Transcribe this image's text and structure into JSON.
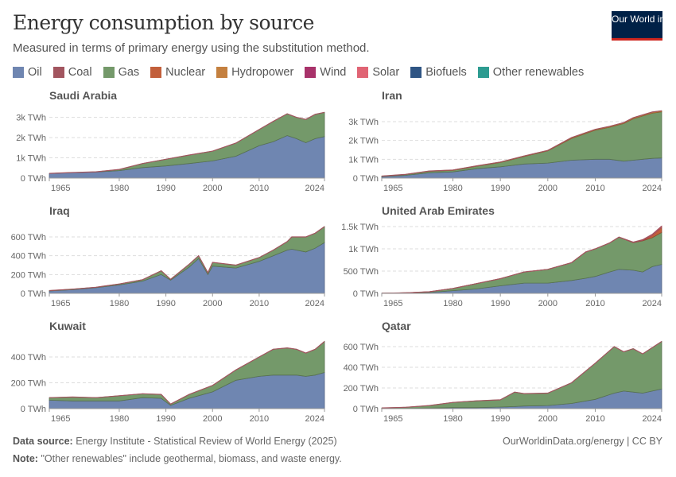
{
  "header": {
    "title": "Energy consumption by source",
    "subtitle": "Measured in terms of primary energy using the substitution method.",
    "logo_text": "Our World in Data"
  },
  "legend": [
    {
      "key": "oil",
      "label": "Oil",
      "color": "#6f86b1"
    },
    {
      "key": "coal",
      "label": "Coal",
      "color": "#a2555f"
    },
    {
      "key": "gas",
      "label": "Gas",
      "color": "#74996a"
    },
    {
      "key": "nuclear",
      "label": "Nuclear",
      "color": "#c25f3b"
    },
    {
      "key": "hydro",
      "label": "Hydropower",
      "color": "#c4803f"
    },
    {
      "key": "wind",
      "label": "Wind",
      "color": "#a8326a"
    },
    {
      "key": "solar",
      "label": "Solar",
      "color": "#e06474"
    },
    {
      "key": "biofuels",
      "label": "Biofuels",
      "color": "#2f5584"
    },
    {
      "key": "other",
      "label": "Other renewables",
      "color": "#2d9c91"
    }
  ],
  "footer": {
    "source_label": "Data source:",
    "source": "Energy Institute - Statistical Review of World Energy (2025)",
    "note_label": "Note:",
    "note": "\"Other renewables\" include geothermal, biomass, and waste energy.",
    "credit": "OurWorldinData.org/energy | CC BY"
  },
  "chart_data": [
    {
      "type": "area",
      "stacked": true,
      "title": "Saudi Arabia",
      "unit": "TWh",
      "ylim": [
        0,
        3300
      ],
      "yticks": [
        0,
        1000,
        2000,
        3000
      ],
      "ytick_labels": [
        "0 TWh",
        "1k TWh",
        "2k TWh",
        "3k TWh"
      ],
      "xticks": [
        1965,
        1980,
        1990,
        2000,
        2010,
        2024
      ],
      "grid": true,
      "x": [
        1965,
        1970,
        1975,
        1980,
        1985,
        1990,
        1995,
        2000,
        2005,
        2010,
        2013,
        2016,
        2018,
        2020,
        2022,
        2024
      ],
      "series": [
        {
          "key": "oil",
          "values": [
            230,
            270,
            300,
            370,
            520,
            600,
            720,
            850,
            1080,
            1600,
            1800,
            2100,
            1950,
            1750,
            1950,
            2050
          ]
        },
        {
          "key": "gas",
          "values": [
            0,
            5,
            10,
            60,
            200,
            330,
            420,
            480,
            650,
            800,
            1000,
            1080,
            1050,
            1150,
            1200,
            1200
          ]
        }
      ]
    },
    {
      "type": "area",
      "stacked": true,
      "title": "Iran",
      "unit": "TWh",
      "ylim": [
        0,
        3550
      ],
      "yticks": [
        0,
        1000,
        2000,
        3000
      ],
      "ytick_labels": [
        "0 TWh",
        "1k TWh",
        "2k TWh",
        "3k TWh"
      ],
      "xticks": [
        1965,
        1980,
        1990,
        2000,
        2010,
        2024
      ],
      "grid": true,
      "x": [
        1965,
        1970,
        1975,
        1980,
        1985,
        1990,
        1995,
        2000,
        2005,
        2010,
        2013,
        2016,
        2018,
        2020,
        2022,
        2024
      ],
      "series": [
        {
          "key": "oil",
          "values": [
            80,
            150,
            280,
            330,
            500,
            600,
            750,
            800,
            950,
            1000,
            1000,
            900,
            950,
            1000,
            1050,
            1070
          ]
        },
        {
          "key": "gas",
          "values": [
            20,
            40,
            80,
            80,
            130,
            230,
            400,
            650,
            1150,
            1550,
            1700,
            2000,
            2200,
            2300,
            2400,
            2450
          ]
        },
        {
          "key": "hydro",
          "values": [
            5,
            10,
            15,
            20,
            20,
            25,
            25,
            20,
            50,
            40,
            50,
            50,
            60,
            60,
            60,
            60
          ]
        }
      ]
    },
    {
      "type": "area",
      "stacked": true,
      "title": "Iraq",
      "unit": "TWh",
      "ylim": [
        0,
        710
      ],
      "yticks": [
        0,
        200,
        400,
        600
      ],
      "ytick_labels": [
        "0 TWh",
        "200 TWh",
        "400 TWh",
        "600 TWh"
      ],
      "xticks": [
        1965,
        1980,
        1990,
        2000,
        2010,
        2024
      ],
      "grid": true,
      "x": [
        1965,
        1970,
        1975,
        1980,
        1985,
        1989,
        1991,
        1995,
        1997,
        1999,
        2000,
        2005,
        2010,
        2013,
        2016,
        2017,
        2018,
        2020,
        2022,
        2024
      ],
      "series": [
        {
          "key": "oil",
          "values": [
            25,
            40,
            60,
            90,
            130,
            200,
            140,
            280,
            370,
            200,
            290,
            270,
            340,
            400,
            460,
            470,
            460,
            440,
            480,
            540
          ]
        },
        {
          "key": "gas",
          "values": [
            5,
            5,
            5,
            10,
            15,
            40,
            10,
            30,
            30,
            20,
            40,
            30,
            40,
            60,
            90,
            130,
            140,
            160,
            160,
            170
          ]
        }
      ]
    },
    {
      "type": "area",
      "stacked": true,
      "title": "United Arab Emirates",
      "unit": "TWh",
      "ylim": [
        0,
        1500
      ],
      "yticks": [
        0,
        500,
        1000,
        1500
      ],
      "ytick_labels": [
        "0 TWh",
        "500 TWh",
        "1k TWh",
        "1.5k TWh"
      ],
      "xticks": [
        1965,
        1980,
        1990,
        2000,
        2010,
        2024
      ],
      "grid": true,
      "x": [
        1965,
        1970,
        1975,
        1980,
        1985,
        1990,
        1995,
        2000,
        2005,
        2008,
        2010,
        2013,
        2015,
        2018,
        2020,
        2022,
        2024
      ],
      "series": [
        {
          "key": "oil",
          "values": [
            3,
            8,
            20,
            60,
            100,
            170,
            230,
            230,
            290,
            340,
            380,
            480,
            540,
            520,
            480,
            600,
            650
          ]
        },
        {
          "key": "gas",
          "values": [
            0,
            5,
            15,
            50,
            120,
            160,
            250,
            310,
            400,
            590,
            620,
            650,
            720,
            620,
            700,
            650,
            720
          ]
        },
        {
          "key": "nuclear",
          "values": [
            0,
            0,
            0,
            0,
            0,
            0,
            0,
            0,
            0,
            0,
            0,
            0,
            0,
            0,
            10,
            50,
            110
          ]
        },
        {
          "key": "solar",
          "values": [
            0,
            0,
            0,
            0,
            0,
            0,
            0,
            0,
            0,
            0,
            0,
            2,
            5,
            10,
            15,
            25,
            30
          ]
        }
      ]
    },
    {
      "type": "area",
      "stacked": true,
      "title": "Kuwait",
      "unit": "TWh",
      "ylim": [
        0,
        517
      ],
      "yticks": [
        0,
        200,
        400
      ],
      "ytick_labels": [
        "0 TWh",
        "200 TWh",
        "400 TWh"
      ],
      "xticks": [
        1965,
        1980,
        1990,
        2000,
        2010,
        2024
      ],
      "grid": true,
      "x": [
        1965,
        1970,
        1975,
        1980,
        1985,
        1989,
        1991,
        1995,
        2000,
        2005,
        2010,
        2013,
        2016,
        2018,
        2020,
        2022,
        2024
      ],
      "series": [
        {
          "key": "oil",
          "values": [
            65,
            60,
            60,
            60,
            85,
            80,
            25,
            80,
            130,
            220,
            250,
            260,
            260,
            260,
            250,
            260,
            280
          ]
        },
        {
          "key": "gas",
          "values": [
            20,
            30,
            25,
            40,
            30,
            30,
            10,
            30,
            50,
            80,
            150,
            200,
            210,
            200,
            180,
            200,
            240
          ]
        }
      ]
    },
    {
      "type": "area",
      "stacked": true,
      "title": "Qatar",
      "unit": "TWh",
      "ylim": [
        0,
        646
      ],
      "yticks": [
        0,
        200,
        400,
        600
      ],
      "ytick_labels": [
        "0 TWh",
        "200 TWh",
        "400 TWh",
        "600 TWh"
      ],
      "xticks": [
        1965,
        1980,
        1990,
        2000,
        2010,
        2024
      ],
      "grid": true,
      "x": [
        1965,
        1970,
        1975,
        1980,
        1985,
        1990,
        1993,
        1995,
        2000,
        2005,
        2010,
        2014,
        2016,
        2018,
        2020,
        2022,
        2024
      ],
      "series": [
        {
          "key": "oil",
          "values": [
            2,
            3,
            5,
            10,
            10,
            15,
            20,
            25,
            30,
            50,
            90,
            150,
            170,
            160,
            150,
            170,
            190
          ]
        },
        {
          "key": "gas",
          "values": [
            5,
            10,
            25,
            50,
            65,
            70,
            140,
            120,
            120,
            200,
            350,
            450,
            380,
            420,
            380,
            420,
            460
          ]
        }
      ]
    }
  ]
}
